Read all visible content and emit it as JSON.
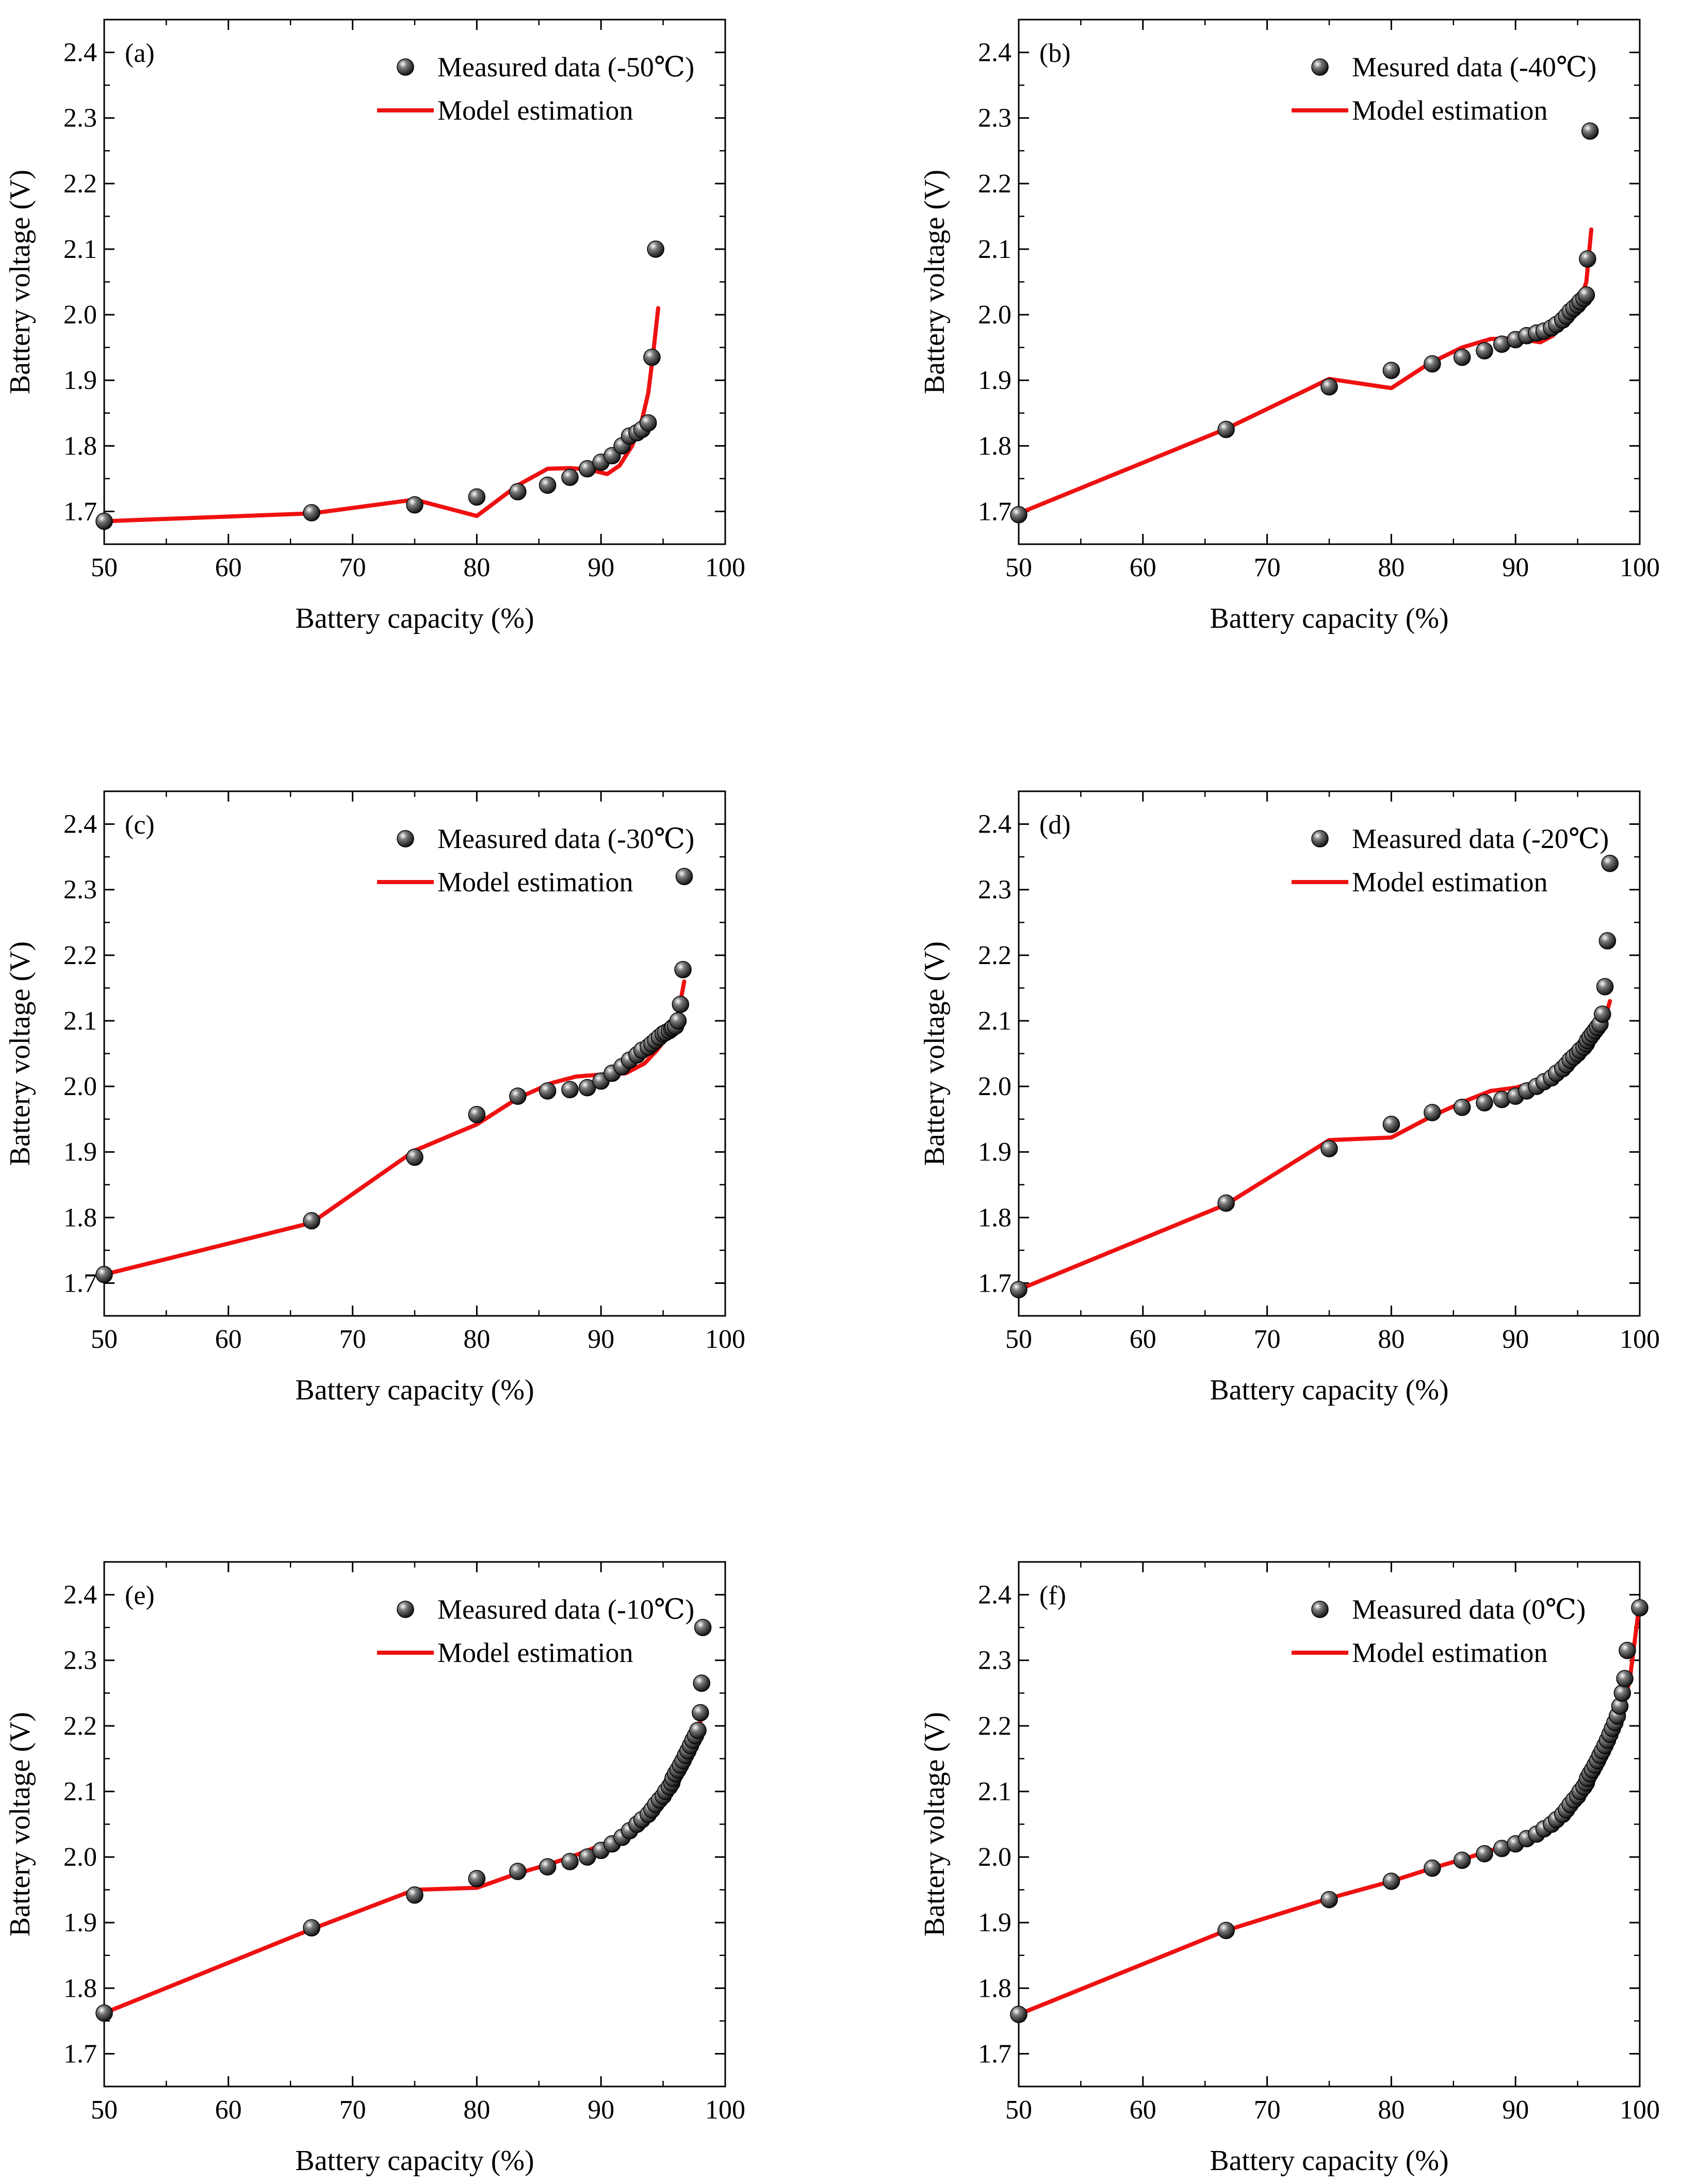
{
  "colors": {
    "model": "#ee1111",
    "measured": "#111111",
    "axis": "#000000"
  },
  "chart_data": [
    {
      "type": "scatter+line",
      "panel": "(a)",
      "xlabel": "Battery capacity (%)",
      "ylabel": "Battery voltage (V)",
      "xlim": [
        50,
        100
      ],
      "ylim": [
        1.65,
        2.45
      ],
      "xticks": [
        "50",
        "60",
        "70",
        "80",
        "90",
        "100"
      ],
      "yticks": [
        "1.7",
        "1.8",
        "1.9",
        "2.0",
        "2.1",
        "2.2",
        "2.3",
        "2.4"
      ],
      "legend": {
        "position": "top-right",
        "measured_label": "Measured data (-50℃)",
        "model_label": "Model estimation"
      },
      "series": [
        {
          "name": "Measured data (-50℃)",
          "kind": "scatter",
          "x": [
            50.0,
            66.7,
            75.0,
            80.0,
            83.3,
            85.7,
            87.5,
            88.9,
            90.0,
            90.9,
            91.7,
            92.3,
            92.9,
            93.3,
            93.8,
            94.1,
            94.4
          ],
          "y": [
            1.685,
            1.698,
            1.71,
            1.722,
            1.73,
            1.74,
            1.752,
            1.765,
            1.775,
            1.785,
            1.8,
            1.815,
            1.82,
            1.825,
            1.835,
            1.935,
            2.1
          ]
        },
        {
          "name": "Model estimation",
          "kind": "line",
          "x": [
            50,
            66.7,
            75,
            80,
            83.3,
            85.7,
            87.5,
            89,
            90.5,
            91.5,
            92.5,
            93.3,
            93.8,
            94.2,
            94.6
          ],
          "y": [
            1.685,
            1.697,
            1.718,
            1.693,
            1.74,
            1.765,
            1.766,
            1.764,
            1.757,
            1.77,
            1.8,
            1.84,
            1.88,
            1.94,
            2.01
          ]
        }
      ]
    },
    {
      "type": "scatter+line",
      "panel": "(b)",
      "xlabel": "Battery capacity (%)",
      "ylabel": "Battery voltage (V)",
      "xlim": [
        50,
        100
      ],
      "ylim": [
        1.65,
        2.45
      ],
      "xticks": [
        "50",
        "60",
        "70",
        "80",
        "90",
        "100"
      ],
      "yticks": [
        "1.7",
        "1.8",
        "1.9",
        "2.0",
        "2.1",
        "2.2",
        "2.3",
        "2.4"
      ],
      "legend": {
        "position": "top-right",
        "measured_label": "Mesured data (-40℃)",
        "model_label": "Model estimation"
      },
      "series": [
        {
          "name": "Mesured data (-40℃)",
          "kind": "scatter",
          "x": [
            50.0,
            66.7,
            75.0,
            80.0,
            83.3,
            85.7,
            87.5,
            88.9,
            90.0,
            90.9,
            91.7,
            92.3,
            92.9,
            93.3,
            93.8,
            94.1,
            94.4,
            94.7,
            95.0,
            95.2,
            95.5,
            95.7,
            95.8,
            96.0
          ],
          "y": [
            1.695,
            1.825,
            1.89,
            1.915,
            1.925,
            1.935,
            1.945,
            1.955,
            1.962,
            1.968,
            1.972,
            1.975,
            1.98,
            1.985,
            1.992,
            1.998,
            2.005,
            2.01,
            2.015,
            2.02,
            2.025,
            2.03,
            2.085,
            2.28
          ]
        },
        {
          "name": "Model estimation",
          "kind": "line",
          "x": [
            50,
            66.7,
            75,
            80,
            83,
            85.7,
            88,
            90,
            92,
            93,
            94,
            95,
            95.7,
            96.1
          ],
          "y": [
            1.697,
            1.826,
            1.902,
            1.888,
            1.925,
            1.95,
            1.963,
            1.964,
            1.958,
            1.968,
            1.988,
            2.01,
            2.05,
            2.13
          ]
        }
      ]
    },
    {
      "type": "scatter+line",
      "panel": "(c)",
      "xlabel": "Battery capacity (%)",
      "ylabel": "Battery voltage (V)",
      "xlim": [
        50,
        100
      ],
      "ylim": [
        1.65,
        2.45
      ],
      "xticks": [
        "50",
        "60",
        "70",
        "80",
        "90",
        "100"
      ],
      "yticks": [
        "1.7",
        "1.8",
        "1.9",
        "2.0",
        "2.1",
        "2.2",
        "2.3",
        "2.4"
      ],
      "legend": {
        "position": "top-right",
        "measured_label": "Measured data (-30℃)",
        "model_label": "Model estimation"
      },
      "series": [
        {
          "name": "Measured data (-30℃)",
          "kind": "scatter",
          "x": [
            50.0,
            66.7,
            75.0,
            80.0,
            83.3,
            85.7,
            87.5,
            88.9,
            90.0,
            90.9,
            91.7,
            92.3,
            92.9,
            93.3,
            93.8,
            94.1,
            94.4,
            94.7,
            95.0,
            95.2,
            95.5,
            95.7,
            95.8,
            96.0,
            96.2,
            96.4,
            96.6,
            96.7
          ],
          "y": [
            1.713,
            1.795,
            1.892,
            1.957,
            1.985,
            1.993,
            1.995,
            1.998,
            2.008,
            2.02,
            2.03,
            2.04,
            2.048,
            2.055,
            2.06,
            2.065,
            2.07,
            2.075,
            2.08,
            2.082,
            2.085,
            2.088,
            2.09,
            2.092,
            2.1,
            2.125,
            2.178,
            2.32
          ]
        },
        {
          "name": "Model estimation",
          "kind": "line",
          "x": [
            50,
            66.7,
            75,
            80,
            83.3,
            86,
            88,
            90,
            92,
            93.5,
            94.5,
            95.5,
            96.2,
            96.7
          ],
          "y": [
            1.713,
            1.792,
            1.902,
            1.942,
            1.982,
            2.005,
            2.015,
            2.018,
            2.02,
            2.035,
            2.055,
            2.08,
            2.11,
            2.16
          ]
        }
      ]
    },
    {
      "type": "scatter+line",
      "panel": "(d)",
      "xlabel": "Battery capacity (%)",
      "ylabel": "Battery voltage (V)",
      "xlim": [
        50,
        100
      ],
      "ylim": [
        1.65,
        2.45
      ],
      "xticks": [
        "50",
        "60",
        "70",
        "80",
        "90",
        "100"
      ],
      "yticks": [
        "1.7",
        "1.8",
        "1.9",
        "2.0",
        "2.1",
        "2.2",
        "2.3",
        "2.4"
      ],
      "legend": {
        "position": "top-right",
        "measured_label": "Measured data (-20℃)",
        "model_label": "Model estimation"
      },
      "series": [
        {
          "name": "Measured data (-20℃)",
          "kind": "scatter",
          "x": [
            50.0,
            66.7,
            75.0,
            80.0,
            83.3,
            85.7,
            87.5,
            88.9,
            90.0,
            90.9,
            91.7,
            92.3,
            92.9,
            93.3,
            93.8,
            94.1,
            94.4,
            94.7,
            95.0,
            95.2,
            95.5,
            95.7,
            95.8,
            96.0,
            96.2,
            96.4,
            96.6,
            96.8,
            97.0,
            97.2,
            97.4,
            97.6
          ],
          "y": [
            1.69,
            1.822,
            1.905,
            1.942,
            1.96,
            1.968,
            1.975,
            1.98,
            1.985,
            1.993,
            2.0,
            2.007,
            2.013,
            2.02,
            2.027,
            2.033,
            2.04,
            2.045,
            2.05,
            2.055,
            2.06,
            2.065,
            2.07,
            2.075,
            2.08,
            2.085,
            2.09,
            2.095,
            2.11,
            2.152,
            2.222,
            2.34
          ]
        },
        {
          "name": "Model estimation",
          "kind": "line",
          "x": [
            50,
            66.7,
            75,
            80,
            83.3,
            86,
            88,
            90,
            92,
            93.5,
            95,
            96.2,
            97,
            97.6
          ],
          "y": [
            1.69,
            1.82,
            1.918,
            1.922,
            1.955,
            1.978,
            1.993,
            1.998,
            2.008,
            2.02,
            2.04,
            2.065,
            2.09,
            2.13
          ]
        }
      ]
    },
    {
      "type": "scatter+line",
      "panel": "(e)",
      "xlabel": "Battery capacity (%)",
      "ylabel": "Battery voltage (V)",
      "xlim": [
        50,
        100
      ],
      "ylim": [
        1.65,
        2.45
      ],
      "xticks": [
        "50",
        "60",
        "70",
        "80",
        "90",
        "100"
      ],
      "yticks": [
        "1.7",
        "1.8",
        "1.9",
        "2.0",
        "2.1",
        "2.2",
        "2.3",
        "2.4"
      ],
      "legend": {
        "position": "top-right",
        "measured_label": "Measured data (-10℃)",
        "model_label": "Model estimation"
      },
      "series": [
        {
          "name": "Measured data (-10℃)",
          "kind": "scatter",
          "x": [
            50.0,
            66.7,
            75.0,
            80.0,
            83.3,
            85.7,
            87.5,
            88.9,
            90.0,
            90.9,
            91.7,
            92.3,
            92.9,
            93.3,
            93.8,
            94.1,
            94.4,
            94.7,
            95.0,
            95.2,
            95.5,
            95.7,
            95.8,
            96.0,
            96.2,
            96.4,
            96.6,
            96.8,
            97.0,
            97.2,
            97.4,
            97.6,
            97.8,
            98.0,
            98.1,
            98.2
          ],
          "y": [
            1.762,
            1.892,
            1.942,
            1.967,
            1.978,
            1.985,
            1.993,
            2.0,
            2.01,
            2.02,
            2.03,
            2.04,
            2.05,
            2.057,
            2.065,
            2.072,
            2.08,
            2.087,
            2.093,
            2.1,
            2.107,
            2.113,
            2.12,
            2.127,
            2.133,
            2.14,
            2.147,
            2.155,
            2.162,
            2.17,
            2.178,
            2.185,
            2.193,
            2.22,
            2.265,
            2.35
          ]
        },
        {
          "name": "Model estimation",
          "kind": "line",
          "x": [
            50,
            66.7,
            75,
            80,
            83.3,
            86,
            88,
            90,
            92,
            94,
            95.5,
            96.8,
            97.6,
            98.2
          ],
          "y": [
            1.762,
            1.89,
            1.95,
            1.953,
            1.975,
            1.99,
            2.003,
            2.018,
            2.038,
            2.07,
            2.1,
            2.14,
            2.18,
            2.22
          ]
        }
      ]
    },
    {
      "type": "scatter+line",
      "panel": "(f)",
      "xlabel": "Battery capacity (%)",
      "ylabel": "Battery voltage (V)",
      "xlim": [
        50,
        100
      ],
      "ylim": [
        1.65,
        2.45
      ],
      "xticks": [
        "50",
        "60",
        "70",
        "80",
        "90",
        "100"
      ],
      "yticks": [
        "1.7",
        "1.8",
        "1.9",
        "2.0",
        "2.1",
        "2.2",
        "2.3",
        "2.4"
      ],
      "legend": {
        "position": "top-right",
        "measured_label": "Measured data (0℃)",
        "model_label": "Model estimation"
      },
      "series": [
        {
          "name": "Measured data (0℃)",
          "kind": "scatter",
          "x": [
            50.0,
            66.7,
            75.0,
            80.0,
            83.3,
            85.7,
            87.5,
            88.9,
            90.0,
            90.9,
            91.7,
            92.3,
            92.9,
            93.3,
            93.8,
            94.1,
            94.4,
            94.7,
            95.0,
            95.2,
            95.5,
            95.7,
            95.8,
            96.0,
            96.2,
            96.4,
            96.6,
            96.8,
            97.0,
            97.2,
            97.4,
            97.6,
            97.8,
            98.0,
            98.2,
            98.4,
            98.6,
            98.8,
            99.0,
            100.0
          ],
          "y": [
            1.76,
            1.888,
            1.935,
            1.963,
            1.983,
            1.995,
            2.005,
            2.013,
            2.02,
            2.028,
            2.035,
            2.043,
            2.05,
            2.057,
            2.065,
            2.072,
            2.08,
            2.087,
            2.093,
            2.1,
            2.107,
            2.113,
            2.12,
            2.127,
            2.133,
            2.14,
            2.147,
            2.155,
            2.162,
            2.17,
            2.178,
            2.187,
            2.196,
            2.205,
            2.215,
            2.23,
            2.25,
            2.272,
            2.315,
            2.38
          ]
        },
        {
          "name": "Model estimation",
          "kind": "line",
          "x": [
            50,
            66.7,
            75,
            80,
            83.3,
            86,
            88,
            90,
            92,
            94,
            95.5,
            97,
            98.2,
            99.2,
            100
          ],
          "y": [
            1.76,
            1.888,
            1.937,
            1.963,
            1.983,
            1.998,
            2.01,
            2.022,
            2.04,
            2.068,
            2.1,
            2.145,
            2.2,
            2.27,
            2.39
          ]
        }
      ]
    }
  ]
}
